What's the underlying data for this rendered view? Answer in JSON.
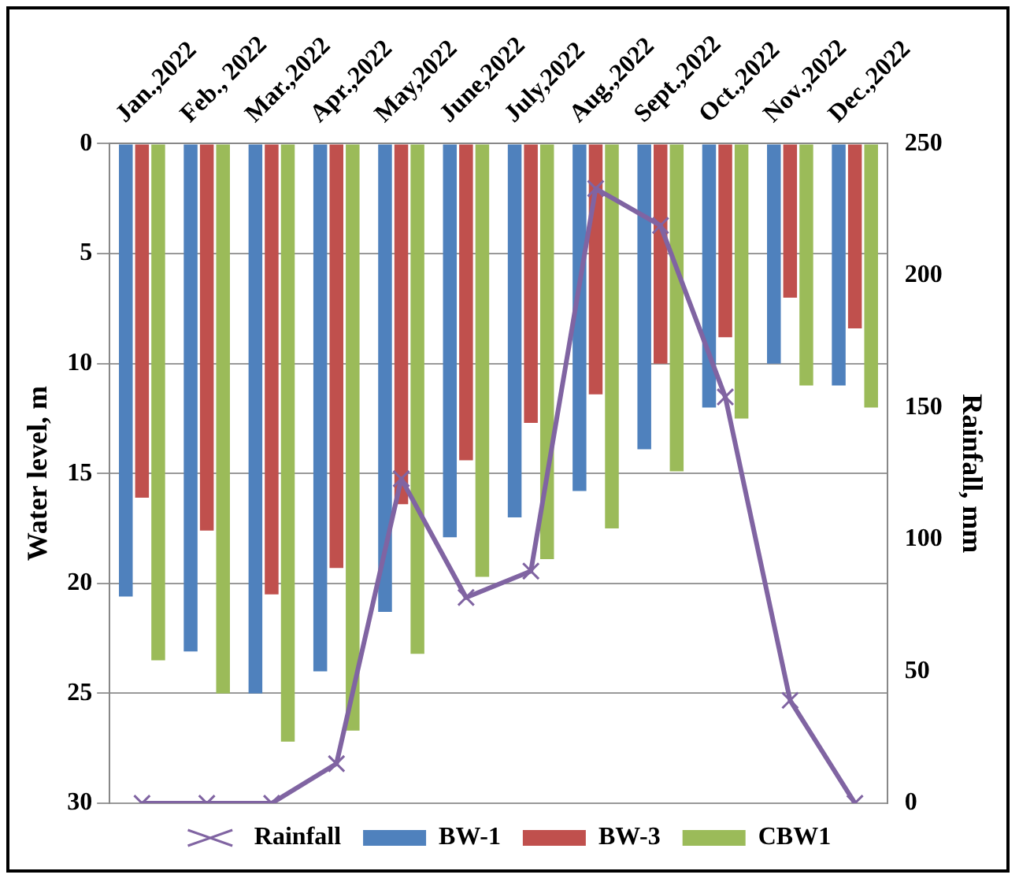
{
  "chart_data": {
    "type": "bar",
    "ylabel": "Water level, m",
    "y2label": "Rainfall, mm",
    "categories": [
      "Jan.,2022",
      "Feb., 2022",
      "Mar.,2022",
      "Apr.,2022",
      "May,2022",
      "June,2022",
      "July,2022",
      "Aug.,2022",
      "Sept.,2022",
      "Oct.,2022",
      "Nov.,2022",
      "Dec.,2022"
    ],
    "series": [
      {
        "name": "BW-1",
        "color": "#4f81bd",
        "values": [
          20.6,
          23.1,
          25,
          24,
          21.3,
          17.9,
          17,
          15.8,
          13.9,
          12,
          10,
          11
        ]
      },
      {
        "name": "BW-3",
        "color": "#c0504d",
        "values": [
          16.1,
          17.6,
          20.5,
          19.3,
          16.4,
          14.4,
          12.7,
          11.4,
          10,
          8.8,
          7,
          8.4
        ]
      },
      {
        "name": "CBW1",
        "color": "#9bbb59",
        "values": [
          23.5,
          25,
          27.2,
          26.7,
          23.2,
          19.7,
          18.9,
          17.5,
          14.9,
          12.5,
          11,
          12
        ]
      },
      {
        "name": "Rainfall",
        "color": "#8064a2",
        "type": "line",
        "axis": "y2",
        "marker": "cross",
        "values": [
          0,
          0,
          0,
          15,
          123,
          78,
          88,
          233,
          219,
          154,
          39,
          0
        ]
      }
    ],
    "ylim": [
      30,
      0
    ],
    "yticks": [
      0,
      5,
      10,
      15,
      20,
      25,
      30
    ],
    "y2lim": [
      0,
      250
    ],
    "y2ticks": [
      0,
      50,
      100,
      150,
      200,
      250
    ],
    "grid": "y",
    "legend": "bottom"
  }
}
